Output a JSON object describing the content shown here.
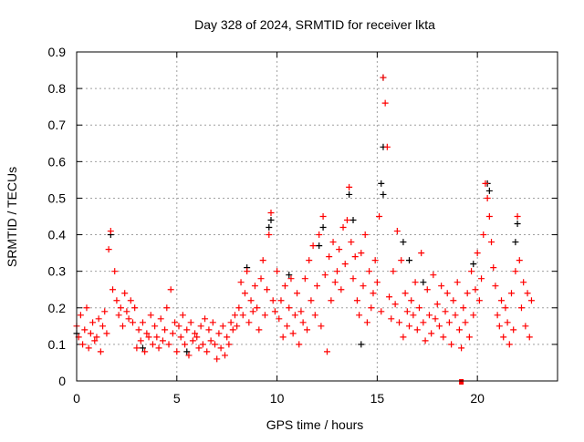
{
  "chart_data": {
    "type": "scatter",
    "title": "Day 328 of 2024, SRMTID for receiver lkta",
    "xlabel": "GPS time / hours",
    "ylabel": "SRMTID / TECUs",
    "xlim": [
      0,
      24
    ],
    "ylim": [
      0,
      0.9
    ],
    "xticks": [
      "0",
      "5",
      "10",
      "15",
      "20"
    ],
    "xtick_values": [
      0,
      5,
      10,
      15,
      20
    ],
    "yticks": [
      "0",
      "0.1",
      "0.2",
      "0.3",
      "0.4",
      "0.5",
      "0.6",
      "0.7",
      "0.8",
      "0.9"
    ],
    "ytick_values": [
      0,
      0.1,
      0.2,
      0.3,
      0.4,
      0.5,
      0.6,
      0.7,
      0.8,
      0.9
    ],
    "grid": true,
    "legend": "none",
    "series": [
      {
        "name": "black",
        "color": "#000000",
        "marker": "plus",
        "points": [
          [
            1.7,
            0.4
          ],
          [
            9.7,
            0.44
          ],
          [
            9.6,
            0.42
          ],
          [
            12.3,
            0.42
          ],
          [
            13.6,
            0.51
          ],
          [
            13.8,
            0.44
          ],
          [
            15.3,
            0.83
          ],
          [
            15.3,
            0.64
          ],
          [
            15.2,
            0.54
          ],
          [
            15.3,
            0.51
          ],
          [
            20.5,
            0.54
          ],
          [
            20.6,
            0.52
          ],
          [
            22.0,
            0.43
          ],
          [
            21.9,
            0.38
          ],
          [
            16.3,
            0.38
          ],
          [
            16.6,
            0.33
          ],
          [
            14.2,
            0.1
          ],
          [
            12.1,
            0.37
          ],
          [
            8.5,
            0.31
          ],
          [
            0.0,
            0.13
          ],
          [
            5.5,
            0.08
          ],
          [
            19.8,
            0.32
          ],
          [
            10.6,
            0.29
          ],
          [
            3.3,
            0.09
          ],
          [
            17.3,
            0.27
          ]
        ]
      },
      {
        "name": "red",
        "color": "#ff0000",
        "marker": "plus",
        "x_start": 0,
        "x_step": 0.1,
        "y": [
          0.15,
          0.12,
          0.18,
          0.1,
          0.14,
          0.2,
          0.09,
          0.13,
          0.16,
          0.11,
          0.12,
          0.17,
          0.08,
          0.15,
          0.19,
          0.13,
          0.36,
          0.41,
          0.25,
          0.3,
          0.22,
          0.18,
          0.2,
          0.15,
          0.24,
          0.19,
          0.17,
          0.22,
          0.16,
          0.2,
          0.09,
          0.14,
          0.11,
          0.16,
          0.08,
          0.13,
          0.12,
          0.18,
          0.1,
          0.15,
          0.12,
          0.09,
          0.17,
          0.11,
          0.14,
          0.2,
          0.1,
          0.25,
          0.13,
          0.16,
          0.08,
          0.15,
          0.12,
          0.18,
          0.1,
          0.14,
          0.07,
          0.16,
          0.11,
          0.13,
          0.12,
          0.09,
          0.15,
          0.1,
          0.17,
          0.08,
          0.14,
          0.11,
          0.16,
          0.1,
          0.06,
          0.13,
          0.09,
          0.15,
          0.07,
          0.12,
          0.1,
          0.16,
          0.14,
          0.18,
          0.15,
          0.2,
          0.27,
          0.18,
          0.24,
          0.3,
          0.16,
          0.22,
          0.19,
          0.26,
          0.2,
          0.14,
          0.28,
          0.33,
          0.18,
          0.25,
          0.4,
          0.46,
          0.22,
          0.19,
          0.3,
          0.17,
          0.22,
          0.12,
          0.26,
          0.15,
          0.2,
          0.28,
          0.13,
          0.18,
          0.24,
          0.1,
          0.19,
          0.16,
          0.28,
          0.14,
          0.33,
          0.22,
          0.37,
          0.18,
          0.26,
          0.4,
          0.15,
          0.45,
          0.29,
          0.08,
          0.34,
          0.22,
          0.38,
          0.27,
          0.3,
          0.36,
          0.25,
          0.42,
          0.32,
          0.44,
          0.53,
          0.38,
          0.28,
          0.34,
          0.22,
          0.18,
          0.35,
          0.26,
          0.4,
          0.16,
          0.3,
          0.2,
          0.24,
          0.33,
          0.27,
          0.45,
          0.19,
          0.83,
          0.76,
          0.64,
          0.23,
          0.17,
          0.3,
          0.21,
          0.41,
          0.16,
          0.33,
          0.12,
          0.24,
          0.19,
          0.15,
          0.22,
          0.18,
          0.27,
          0.14,
          0.2,
          0.35,
          0.16,
          0.11,
          0.25,
          0.18,
          0.13,
          0.29,
          0.17,
          0.21,
          0.15,
          0.26,
          0.12,
          0.19,
          0.24,
          0.16,
          0.1,
          0.22,
          0.18,
          0.27,
          0.14,
          0.09,
          0.2,
          0.16,
          0.24,
          0.12,
          0.3,
          0.18,
          0.25,
          0.35,
          0.22,
          0.28,
          0.4,
          0.54,
          0.5,
          0.45,
          0.38,
          0.31,
          0.26,
          0.18,
          0.15,
          0.22,
          0.12,
          0.2,
          0.16,
          0.1,
          0.24,
          0.14,
          0.3,
          0.45,
          0.33,
          0.2,
          0.27,
          0.15,
          0.24,
          0.12,
          0.22
        ]
      }
    ],
    "annotations": [
      {
        "type": "square-marker",
        "color": "#ff0000",
        "x": 19.2,
        "y": 0
      }
    ]
  }
}
